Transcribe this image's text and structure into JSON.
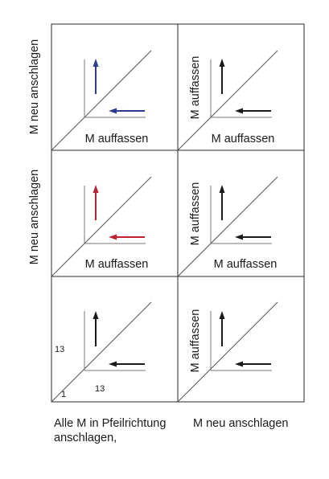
{
  "left_side_labels": {
    "top": "M neu anschlagen",
    "middle": "M neu anschlagen"
  },
  "cells": [
    {
      "id": "r1c1",
      "bottom_label": "M auffassen",
      "vertical_label": "",
      "arrow_color": "#2d3b8f"
    },
    {
      "id": "r1c2",
      "bottom_label": "M auffassen",
      "vertical_label": "M auffassen",
      "arrow_color": "#1a1a1a"
    },
    {
      "id": "r2c1",
      "bottom_label": "M auffassen",
      "vertical_label": "",
      "arrow_color": "#c0202e"
    },
    {
      "id": "r2c2",
      "bottom_label": "M auffassen",
      "vertical_label": "M auffassen",
      "arrow_color": "#1a1a1a"
    },
    {
      "id": "r3c1",
      "bottom_label": "",
      "vertical_label": "",
      "arrow_color": "#1a1a1a"
    },
    {
      "id": "r3c2",
      "bottom_label": "",
      "vertical_label": "M auffassen",
      "arrow_color": "#1a1a1a"
    }
  ],
  "corner_numbers": {
    "left": "13",
    "bottom": "13",
    "origin": "1"
  },
  "captions": {
    "left_line1": "Alle M in Pfeilrichtung",
    "left_line2": "anschlagen,",
    "right": "M neu anschlagen"
  }
}
